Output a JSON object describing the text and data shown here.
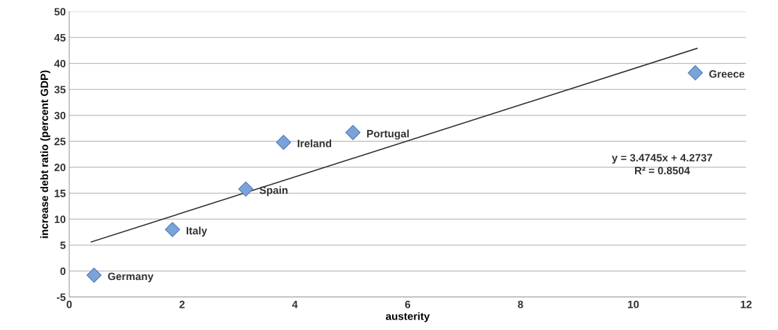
{
  "chart_data": {
    "type": "scatter",
    "xlabel": "austerity",
    "ylabel": "increase debt ratio (percent GDP)",
    "series": [
      {
        "color": "#7ba3d8",
        "marker": "diamond",
        "x": [
          0.44,
          1.83,
          3.13,
          3.8,
          5.03,
          11.1
        ],
        "values": [
          -0.8,
          8.0,
          15.8,
          24.8,
          26.7,
          38.2
        ],
        "value_labels": [
          "Germany",
          "Italy",
          "Spain",
          "Ireland",
          "Portugal",
          "Greece"
        ]
      },
      {
        "type": "line",
        "color": "#333333",
        "marker": "none",
        "x": [
          0.39,
          11.13
        ],
        "values": [
          5.6,
          42.9
        ]
      }
    ],
    "annotations": [
      "y = 3.4745x + 4.2737",
      "R² = 0.8504"
    ],
    "xlim": [
      0,
      12
    ],
    "xticks": [
      0,
      2,
      4,
      6,
      8,
      10,
      12
    ],
    "ylim": [
      -5,
      50
    ],
    "yticks": [
      -5,
      0,
      5,
      10,
      15,
      20,
      25,
      30,
      35,
      40,
      45,
      50
    ],
    "grid": "y",
    "legend": false
  }
}
